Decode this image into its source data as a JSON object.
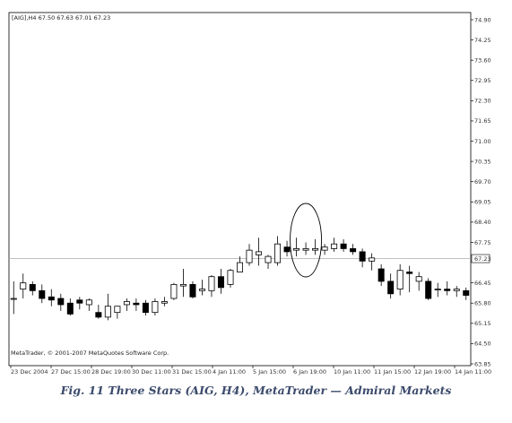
{
  "chart_data": {
    "type": "candlestick",
    "header": "[AIG],H4  67.50 67.63 67.01 67.23",
    "watermark": "MetaTrader, © 2001-2007 MetaQuotes Software Corp.",
    "y_ticks": [
      "74.90",
      "74.25",
      "73.60",
      "72.95",
      "72.30",
      "71.65",
      "71.00",
      "70.35",
      "69.70",
      "69.05",
      "68.40",
      "67.75",
      "67.23",
      "66.45",
      "65.80",
      "65.15",
      "64.50",
      "63.85"
    ],
    "y_range": [
      63.85,
      74.9
    ],
    "current_price": 67.23,
    "current_price_label": "67.23",
    "x_ticks": [
      "23 Dec 2004",
      "27 Dec 15:00",
      "28 Dec 19:00",
      "30 Dec 11:00",
      "31 Dec 15:00",
      "4 Jan 11:00",
      "5 Jan 15:00",
      "6 Jan 19:00",
      "10 Jan 11:00",
      "11 Jan 15:00",
      "12 Jan 19:00",
      "14 Jan 11:00"
    ],
    "candles": [
      {
        "o": 65.95,
        "h": 66.5,
        "l": 65.45,
        "c": 65.95
      },
      {
        "o": 66.25,
        "h": 66.75,
        "l": 65.95,
        "c": 66.45
      },
      {
        "o": 66.4,
        "h": 66.5,
        "l": 66.05,
        "c": 66.2
      },
      {
        "o": 66.2,
        "h": 66.4,
        "l": 65.8,
        "c": 65.95
      },
      {
        "o": 66.0,
        "h": 66.25,
        "l": 65.7,
        "c": 65.9
      },
      {
        "o": 65.95,
        "h": 66.1,
        "l": 65.55,
        "c": 65.75
      },
      {
        "o": 65.8,
        "h": 65.95,
        "l": 65.4,
        "c": 65.45
      },
      {
        "o": 65.9,
        "h": 66.0,
        "l": 65.6,
        "c": 65.8
      },
      {
        "o": 65.75,
        "h": 65.95,
        "l": 65.55,
        "c": 65.9
      },
      {
        "o": 65.5,
        "h": 65.75,
        "l": 65.3,
        "c": 65.35
      },
      {
        "o": 65.35,
        "h": 66.1,
        "l": 65.25,
        "c": 65.7
      },
      {
        "o": 65.5,
        "h": 65.7,
        "l": 65.3,
        "c": 65.7
      },
      {
        "o": 65.75,
        "h": 65.95,
        "l": 65.55,
        "c": 65.85
      },
      {
        "o": 65.8,
        "h": 65.95,
        "l": 65.55,
        "c": 65.75
      },
      {
        "o": 65.8,
        "h": 65.9,
        "l": 65.4,
        "c": 65.5
      },
      {
        "o": 65.5,
        "h": 65.95,
        "l": 65.4,
        "c": 65.85
      },
      {
        "o": 65.8,
        "h": 66.0,
        "l": 65.7,
        "c": 65.85
      },
      {
        "o": 65.95,
        "h": 66.45,
        "l": 65.9,
        "c": 66.4
      },
      {
        "o": 66.35,
        "h": 66.9,
        "l": 66.0,
        "c": 66.4
      },
      {
        "o": 66.4,
        "h": 66.5,
        "l": 65.95,
        "c": 66.0
      },
      {
        "o": 66.2,
        "h": 66.55,
        "l": 66.05,
        "c": 66.25
      },
      {
        "o": 66.2,
        "h": 66.7,
        "l": 66.0,
        "c": 66.65
      },
      {
        "o": 66.65,
        "h": 66.9,
        "l": 66.1,
        "c": 66.3
      },
      {
        "o": 66.4,
        "h": 66.9,
        "l": 66.3,
        "c": 66.85
      },
      {
        "o": 66.8,
        "h": 67.3,
        "l": 66.8,
        "c": 67.1
      },
      {
        "o": 67.1,
        "h": 67.7,
        "l": 67.0,
        "c": 67.5
      },
      {
        "o": 67.35,
        "h": 67.9,
        "l": 67.0,
        "c": 67.45
      },
      {
        "o": 67.1,
        "h": 67.35,
        "l": 66.9,
        "c": 67.3
      },
      {
        "o": 67.1,
        "h": 67.95,
        "l": 67.0,
        "c": 67.7
      },
      {
        "o": 67.6,
        "h": 67.8,
        "l": 67.3,
        "c": 67.45
      },
      {
        "o": 67.5,
        "h": 67.9,
        "l": 67.3,
        "c": 67.55
      },
      {
        "o": 67.5,
        "h": 67.75,
        "l": 67.35,
        "c": 67.55
      },
      {
        "o": 67.5,
        "h": 67.85,
        "l": 67.35,
        "c": 67.55
      },
      {
        "o": 67.5,
        "h": 67.7,
        "l": 67.35,
        "c": 67.6
      },
      {
        "o": 67.55,
        "h": 67.9,
        "l": 67.45,
        "c": 67.7
      },
      {
        "o": 67.7,
        "h": 67.85,
        "l": 67.45,
        "c": 67.55
      },
      {
        "o": 67.55,
        "h": 67.7,
        "l": 67.35,
        "c": 67.45
      },
      {
        "o": 67.45,
        "h": 67.55,
        "l": 66.95,
        "c": 67.15
      },
      {
        "o": 67.15,
        "h": 67.4,
        "l": 66.85,
        "c": 67.25
      },
      {
        "o": 66.9,
        "h": 67.05,
        "l": 66.35,
        "c": 66.5
      },
      {
        "o": 66.5,
        "h": 66.75,
        "l": 65.95,
        "c": 66.1
      },
      {
        "o": 66.25,
        "h": 67.05,
        "l": 66.05,
        "c": 66.85
      },
      {
        "o": 66.8,
        "h": 67.0,
        "l": 66.15,
        "c": 66.75
      },
      {
        "o": 66.5,
        "h": 66.8,
        "l": 66.2,
        "c": 66.65
      },
      {
        "o": 66.5,
        "h": 66.6,
        "l": 65.9,
        "c": 65.95
      },
      {
        "o": 66.25,
        "h": 66.45,
        "l": 66.0,
        "c": 66.25
      },
      {
        "o": 66.25,
        "h": 66.5,
        "l": 66.05,
        "c": 66.2
      },
      {
        "o": 66.2,
        "h": 66.35,
        "l": 66.0,
        "c": 66.25
      },
      {
        "o": 66.2,
        "h": 66.3,
        "l": 65.9,
        "c": 66.05
      }
    ],
    "highlight": {
      "label": "Three Stars",
      "from_index": 30,
      "to_index": 32
    },
    "caption": "Fig. 11 Three Stars (AIG, H4), MetaTrader — Admiral Markets"
  }
}
